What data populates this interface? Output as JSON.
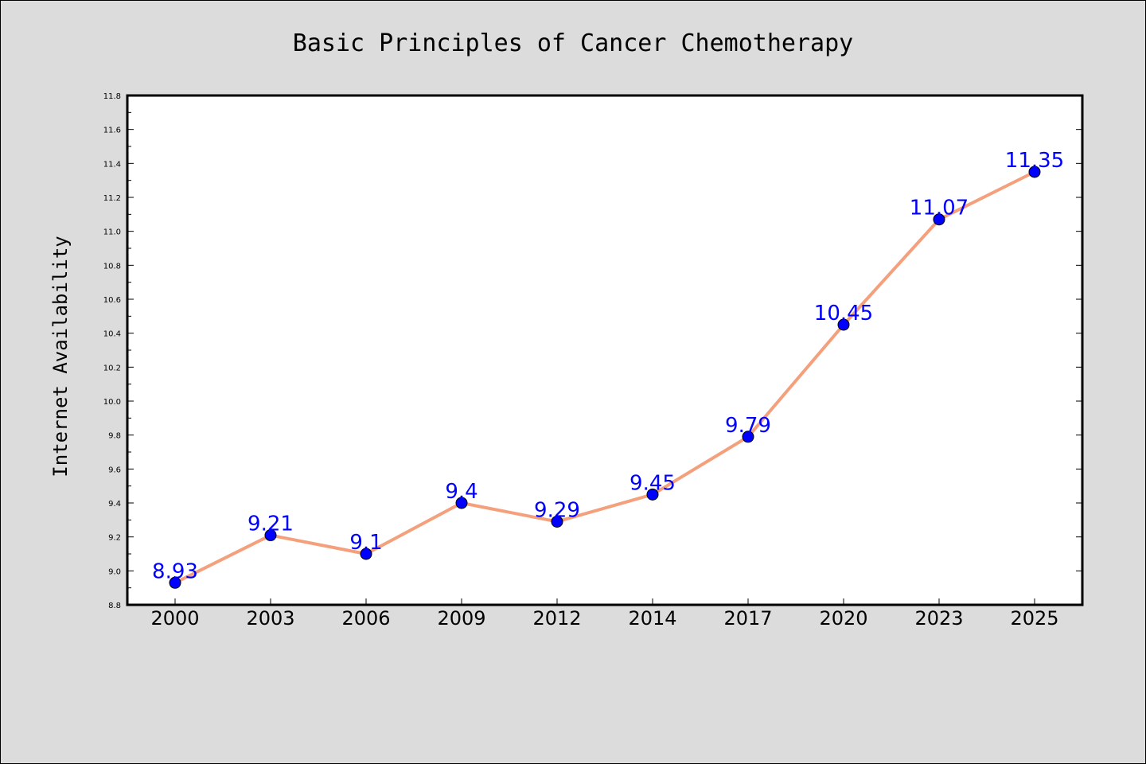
{
  "chart_data": {
    "type": "line",
    "title": "Basic Principles of Cancer Chemotherapy",
    "xlabel": "",
    "ylabel": "Internet Availability",
    "categories": [
      "2000",
      "2003",
      "2006",
      "2009",
      "2012",
      "2014",
      "2017",
      "2020",
      "2023",
      "2025"
    ],
    "series": [
      {
        "values": [
          8.93,
          9.21,
          9.1,
          9.4,
          9.29,
          9.45,
          9.79,
          10.45,
          11.07,
          11.35
        ],
        "labels": [
          "8.93",
          "9.21",
          "9.1",
          "9.4",
          "9.29",
          "9.45",
          "9.79",
          "10.45",
          "11.07",
          "11.35"
        ]
      }
    ],
    "ylim": [
      8.8,
      11.8
    ],
    "yticks": [
      "8.8",
      "9.0",
      "9.2",
      "9.4",
      "9.6",
      "9.8",
      "10.0",
      "10.2",
      "10.4",
      "10.6",
      "10.8",
      "11.0",
      "11.2",
      "11.4",
      "11.6",
      "11.8"
    ],
    "grid": false,
    "colors": {
      "line": "#f4a07c",
      "marker": "#0000ff",
      "label": "#0000ff",
      "background": "#dcdcdc",
      "plot_background": "#ffffff"
    }
  }
}
